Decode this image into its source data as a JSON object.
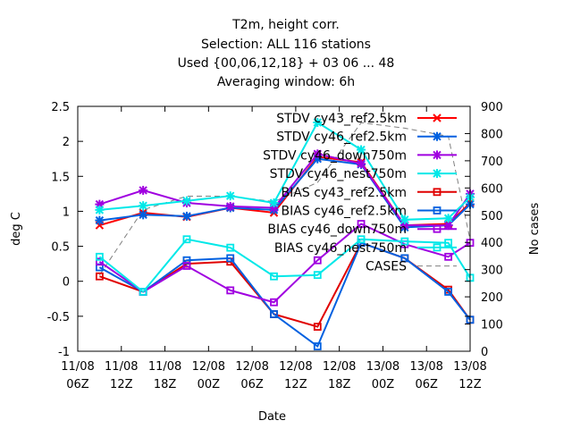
{
  "chart_data": {
    "type": "line",
    "title": [
      "T2m, height corr.",
      "Selection: ALL    116 stations",
      "Used {00,06,12,18} + 03 06 ... 48",
      "Averaging window:  6h"
    ],
    "xlabel": "Date",
    "ylabel": "deg C",
    "y2label": "No cases",
    "ylim": [
      -1,
      2.5
    ],
    "y2lim": [
      0,
      900
    ],
    "grid": false,
    "legend_position": "top-right",
    "x_tick_labels": [
      [
        "11/08",
        "06Z"
      ],
      [
        "11/08",
        "12Z"
      ],
      [
        "11/08",
        "18Z"
      ],
      [
        "12/08",
        "00Z"
      ],
      [
        "12/08",
        "06Z"
      ],
      [
        "12/08",
        "12Z"
      ],
      [
        "12/08",
        "18Z"
      ],
      [
        "13/08",
        "00Z"
      ],
      [
        "13/08",
        "06Z"
      ],
      [
        "13/08",
        "12Z"
      ]
    ],
    "y_ticks": [
      -1,
      -0.5,
      0,
      0.5,
      1,
      1.5,
      2,
      2.5
    ],
    "y_tick_labels": [
      "-1",
      "-0.5",
      "0",
      "0.5",
      "1",
      "1.5",
      "2",
      "2.5"
    ],
    "y2_ticks": [
      0,
      100,
      200,
      300,
      400,
      500,
      600,
      700,
      800,
      900
    ],
    "y2_tick_labels": [
      "0",
      "100",
      "200",
      "300",
      "400",
      "500",
      "600",
      "700",
      "800",
      "900"
    ],
    "x": [
      "11/08 09Z",
      "11/08 15Z",
      "11/08 21Z",
      "12/08 03Z",
      "12/08 09Z",
      "12/08 15Z",
      "12/08 21Z",
      "13/08 03Z",
      "13/08 09Z",
      "13/08 12Z"
    ],
    "series": [
      {
        "name": "STDV cy43_ref2.5km",
        "color": "#ff0000",
        "marker": "x",
        "axis": "left",
        "values": [
          0.8,
          0.98,
          0.92,
          1.05,
          0.98,
          1.78,
          1.7,
          0.8,
          0.82,
          1.12
        ]
      },
      {
        "name": "STDV cy46_ref2.5km",
        "color": "#0060e0",
        "marker": "star",
        "axis": "left",
        "values": [
          0.87,
          0.95,
          0.93,
          1.05,
          1.02,
          1.75,
          1.67,
          0.77,
          0.8,
          1.1
        ]
      },
      {
        "name": "STDV cy46_down750m",
        "color": "#a000e0",
        "marker": "star",
        "axis": "left",
        "values": [
          1.1,
          1.3,
          1.12,
          1.07,
          1.05,
          1.82,
          1.68,
          0.8,
          0.8,
          1.25
        ]
      },
      {
        "name": "STDV cy46_nest750m",
        "color": "#00e8e8",
        "marker": "star",
        "axis": "left",
        "values": [
          1.02,
          1.08,
          1.15,
          1.22,
          1.12,
          2.27,
          1.88,
          0.88,
          0.9,
          1.2
        ]
      },
      {
        "name": "BIAS cy43_ref2.5km",
        "color": "#e00000",
        "marker": "square",
        "axis": "left",
        "values": [
          0.07,
          -0.15,
          0.25,
          0.28,
          -0.47,
          -0.65,
          0.55,
          0.33,
          -0.12,
          -0.55
        ]
      },
      {
        "name": "BIAS cy46_ref2.5km",
        "color": "#0060e0",
        "marker": "square",
        "axis": "left",
        "values": [
          0.2,
          -0.15,
          0.3,
          0.33,
          -0.47,
          -0.93,
          0.55,
          0.33,
          -0.15,
          -0.55
        ]
      },
      {
        "name": "BIAS cy46_down750m",
        "color": "#a000e0",
        "marker": "square",
        "axis": "left",
        "values": [
          0.28,
          -0.15,
          0.22,
          -0.13,
          -0.3,
          0.3,
          0.82,
          0.53,
          0.35,
          0.55
        ]
      },
      {
        "name": "BIAS cy46_nest750m",
        "color": "#00e8e8",
        "marker": "square",
        "axis": "left",
        "values": [
          0.35,
          -0.15,
          0.6,
          0.48,
          0.07,
          0.09,
          0.6,
          0.57,
          0.55,
          0.05
        ]
      },
      {
        "name": "CASES",
        "color": "#808080",
        "marker": "none",
        "dashed": true,
        "axis": "right",
        "values": [
          280,
          520,
          570,
          570,
          550,
          620,
          840,
          820,
          790,
          410
        ]
      }
    ]
  }
}
